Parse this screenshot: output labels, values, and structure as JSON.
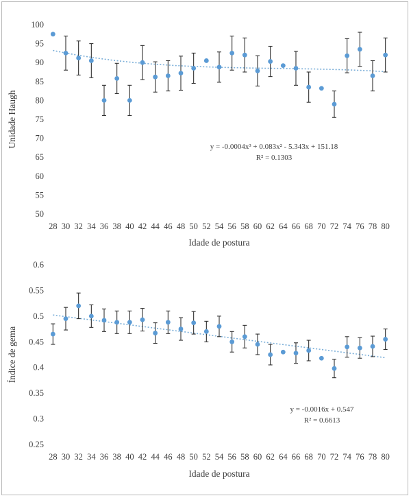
{
  "chart_data": [
    {
      "type": "scatter",
      "title": "",
      "xlabel": "Idade de postura",
      "ylabel": "Unidade Haugh",
      "ylim": [
        50,
        100
      ],
      "yticks": [
        50,
        55,
        60,
        65,
        70,
        75,
        80,
        85,
        90,
        95,
        100
      ],
      "x": [
        28,
        30,
        32,
        34,
        36,
        38,
        40,
        42,
        44,
        46,
        48,
        50,
        52,
        54,
        56,
        58,
        60,
        62,
        64,
        66,
        68,
        70,
        72,
        74,
        76,
        78,
        80
      ],
      "y": [
        97.5,
        92.5,
        91.2,
        90.5,
        80.0,
        85.8,
        80.0,
        90.0,
        86.2,
        86.5,
        87.2,
        88.5,
        90.5,
        88.8,
        92.5,
        92.0,
        87.8,
        90.3,
        89.2,
        88.5,
        83.5,
        83.2,
        79.0,
        91.8,
        93.5,
        86.5,
        92.0
      ],
      "error": [
        0,
        4.5,
        4.5,
        4.5,
        4.0,
        4.0,
        4.0,
        4.5,
        4.0,
        4.0,
        4.5,
        4.0,
        0,
        4.0,
        4.5,
        4.5,
        4.0,
        4.0,
        0,
        4.5,
        4.0,
        0,
        3.5,
        4.5,
        4.5,
        4.0,
        4.5
      ],
      "trendline": {
        "type": "polynomial",
        "coefficients": [
          -0.0004,
          0.083,
          -5.343,
          151.18
        ]
      },
      "equation": "y = -0.0004x³ + 0.083x² - 5.343x + 151.18",
      "r2": "R² = 0.1303"
    },
    {
      "type": "scatter",
      "title": "",
      "xlabel": "Idade de postura",
      "ylabel": "Índice de gema",
      "ylim": [
        0.25,
        0.6
      ],
      "yticks": [
        0.25,
        0.3,
        0.35,
        0.4,
        0.45,
        0.5,
        0.55,
        0.6
      ],
      "ytick_labels": [
        "0.25",
        "0.3",
        "0.35",
        "0.4",
        "0.45",
        "0.5",
        "0.55",
        "0.6"
      ],
      "x": [
        28,
        30,
        32,
        34,
        36,
        38,
        40,
        42,
        44,
        46,
        48,
        50,
        52,
        54,
        56,
        58,
        60,
        62,
        64,
        66,
        68,
        70,
        72,
        74,
        76,
        78,
        80
      ],
      "y": [
        0.465,
        0.495,
        0.52,
        0.5,
        0.492,
        0.488,
        0.488,
        0.493,
        0.467,
        0.488,
        0.475,
        0.487,
        0.47,
        0.48,
        0.45,
        0.46,
        0.445,
        0.425,
        0.43,
        0.428,
        0.433,
        0.418,
        0.398,
        0.44,
        0.438,
        0.441,
        0.455
      ],
      "error": [
        0.02,
        0.022,
        0.025,
        0.022,
        0.022,
        0.022,
        0.022,
        0.022,
        0.02,
        0.022,
        0.022,
        0.022,
        0.02,
        0.02,
        0.02,
        0.022,
        0.02,
        0.02,
        0,
        0.02,
        0.02,
        0,
        0.018,
        0.02,
        0.02,
        0.02,
        0.02
      ],
      "trendline": {
        "type": "linear",
        "slope": -0.0016,
        "intercept": 0.547
      },
      "equation": "y = -0.0016x + 0.547",
      "r2": "R² = 0.6613"
    }
  ],
  "colors": {
    "marker": "#5b9bd5",
    "trendline": "#7aaed8",
    "error_bar": "#303030",
    "tick_text": "#404040",
    "frame": "#b8b8b8"
  }
}
